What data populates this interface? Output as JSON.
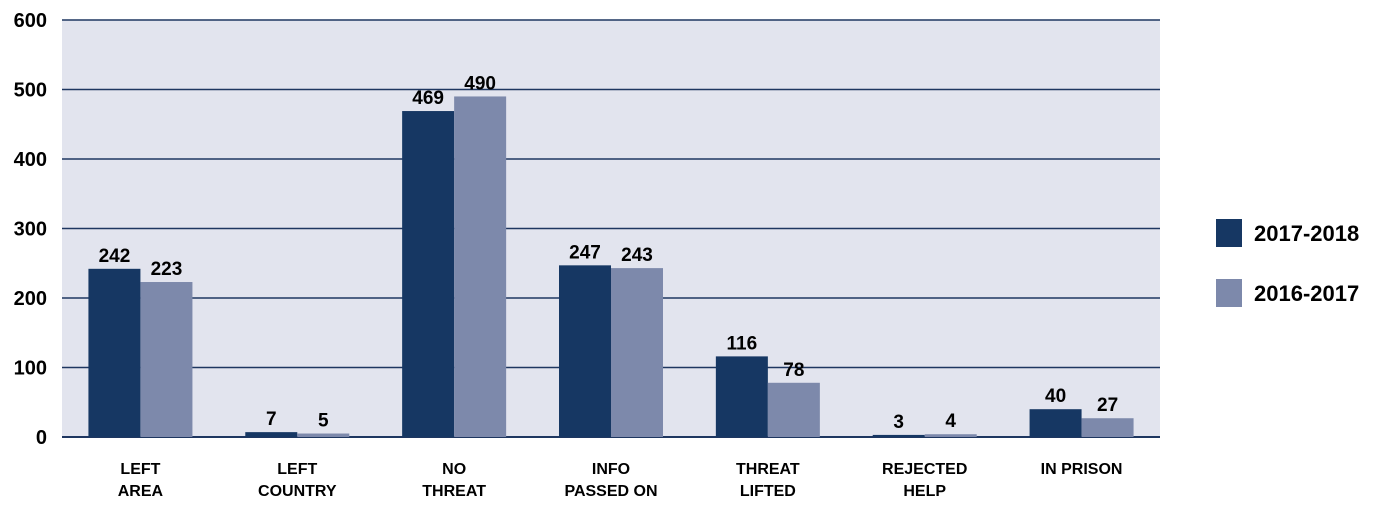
{
  "colors": {
    "plot_bg": "#e2e4ee",
    "grid": "#1e3660",
    "axis": "#1e3660"
  },
  "chart_data": {
    "type": "bar",
    "categories": [
      [
        "LEFT",
        "AREA"
      ],
      [
        "LEFT",
        "COUNTRY"
      ],
      [
        "NO",
        "THREAT"
      ],
      [
        "INFO",
        "PASSED ON"
      ],
      [
        "THREAT",
        "LIFTED"
      ],
      [
        "REJECTED",
        "HELP"
      ],
      [
        "IN PRISON"
      ]
    ],
    "series": [
      {
        "name": "2017-2018",
        "color": "#163763",
        "values": [
          242,
          7,
          469,
          247,
          116,
          3,
          40
        ]
      },
      {
        "name": "2016-2017",
        "color": "#7d89ab",
        "values": [
          223,
          5,
          490,
          243,
          78,
          4,
          27
        ]
      }
    ],
    "ylim": [
      0,
      600
    ],
    "yticks": [
      0,
      100,
      200,
      300,
      400,
      500,
      600
    ],
    "grid": true,
    "legend": "right"
  }
}
